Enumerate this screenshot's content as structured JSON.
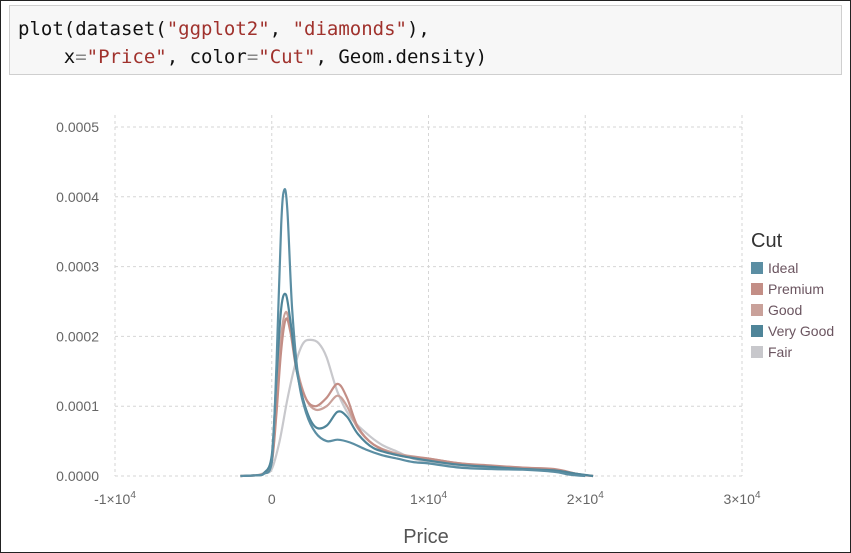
{
  "code_cell": {
    "line1": [
      "plot(dataset(",
      "\"ggplot2\"",
      ", ",
      "\"diamonds\"",
      "),"
    ],
    "line2": [
      "    x",
      "=",
      "\"Price\"",
      ", color",
      "=",
      "\"Cut\"",
      ", Geom.density)"
    ]
  },
  "chart_data": {
    "type": "line",
    "title": "",
    "xlabel": "Price",
    "ylabel": "",
    "xlim": [
      -10000,
      30000
    ],
    "ylim": [
      0,
      0.0005
    ],
    "xticks": [
      -10000,
      0,
      10000,
      20000,
      30000
    ],
    "xtick_labels": [
      {
        "base": "-1×10",
        "exp": "4"
      },
      {
        "base": "0",
        "exp": ""
      },
      {
        "base": "1×10",
        "exp": "4"
      },
      {
        "base": "2×10",
        "exp": "4"
      },
      {
        "base": "3×10",
        "exp": "4"
      }
    ],
    "yticks": [
      0,
      0.0001,
      0.0002,
      0.0003,
      0.0004,
      0.0005
    ],
    "ytick_labels": [
      "0.0000",
      "0.0001",
      "0.0002",
      "0.0003",
      "0.0004",
      "0.0005"
    ],
    "grid": true,
    "legend": {
      "title": "Cut",
      "position": "right"
    },
    "series": [
      {
        "name": "Ideal",
        "color": "#5b8ea3",
        "x": [
          -2000,
          -1000,
          -500,
          0,
          300,
          600,
          800,
          1000,
          1300,
          1700,
          2200,
          2800,
          3500,
          4200,
          5000,
          6000,
          7000,
          8000,
          9000,
          10000,
          12000,
          14000,
          16000,
          18000,
          19000,
          20000
        ],
        "y": [
          0,
          1e-06,
          3e-06,
          2e-05,
          0.00016,
          0.00036,
          0.00041,
          0.00038,
          0.00024,
          0.00014,
          9e-05,
          6.2e-05,
          5e-05,
          5.2e-05,
          4.8e-05,
          3.8e-05,
          3e-05,
          2.5e-05,
          2e-05,
          1.8e-05,
          1.2e-05,
          1e-05,
          9e-06,
          6e-06,
          2e-06,
          0
        ]
      },
      {
        "name": "Premium",
        "color": "#c38e86",
        "x": [
          -2000,
          -1000,
          -500,
          0,
          300,
          600,
          900,
          1200,
          1600,
          2200,
          2800,
          3500,
          4200,
          4800,
          5500,
          6500,
          8000,
          10000,
          12000,
          14000,
          16000,
          18000,
          19500,
          20500
        ],
        "y": [
          0,
          1e-06,
          4e-06,
          2e-05,
          9e-05,
          0.00018,
          0.000225,
          0.000205,
          0.00015,
          0.00011,
          0.0001,
          0.000112,
          0.000132,
          0.000112,
          7e-05,
          4.5e-05,
          3e-05,
          2.5e-05,
          1.8e-05,
          1.5e-05,
          1.2e-05,
          1e-05,
          3e-06,
          0
        ]
      },
      {
        "name": "Good",
        "color": "#c9a19a",
        "x": [
          -2000,
          -1000,
          -500,
          0,
          300,
          600,
          900,
          1200,
          1600,
          2200,
          2800,
          3500,
          4200,
          4800,
          5500,
          6500,
          8000,
          10000,
          12000,
          14000,
          16000,
          18000,
          19500,
          20500
        ],
        "y": [
          0,
          1e-06,
          4e-06,
          2e-05,
          0.0001,
          0.0002,
          0.000235,
          0.00021,
          0.000155,
          0.00011,
          9.5e-05,
          0.0001,
          0.000115,
          0.0001,
          6.8e-05,
          4.5e-05,
          3.2e-05,
          2.5e-05,
          1.8e-05,
          1.4e-05,
          1.2e-05,
          9e-06,
          3e-06,
          0
        ]
      },
      {
        "name": "Very Good",
        "color": "#4f8599",
        "x": [
          -2000,
          -1000,
          -500,
          0,
          300,
          600,
          900,
          1200,
          1600,
          2200,
          2800,
          3500,
          4200,
          4800,
          5500,
          6500,
          8000,
          10000,
          12000,
          14000,
          16000,
          18000,
          19500,
          20500
        ],
        "y": [
          0,
          1e-06,
          4e-06,
          3e-05,
          0.00014,
          0.00024,
          0.00026,
          0.00022,
          0.00015,
          9.5e-05,
          7e-05,
          7.2e-05,
          9.2e-05,
          8.5e-05,
          6e-05,
          4e-05,
          3e-05,
          2.2e-05,
          1.6e-05,
          1.3e-05,
          1e-05,
          8e-06,
          3e-06,
          0
        ]
      },
      {
        "name": "Fair",
        "color": "#c8c8cc",
        "x": [
          -2000,
          -1000,
          -500,
          0,
          500,
          1000,
          1500,
          2000,
          2500,
          3000,
          3500,
          4200,
          5000,
          6000,
          7000,
          8000,
          9000,
          10000,
          12000,
          14000,
          16000,
          18000,
          19500,
          20500
        ],
        "y": [
          0,
          1e-06,
          4e-06,
          1e-05,
          5e-05,
          0.00011,
          0.00016,
          0.00019,
          0.000195,
          0.00019,
          0.00017,
          0.00012,
          8.5e-05,
          6.2e-05,
          4.5e-05,
          3.5e-05,
          2.5e-05,
          2e-05,
          1.5e-05,
          1.2e-05,
          1e-05,
          8e-06,
          2e-06,
          0
        ]
      }
    ]
  }
}
